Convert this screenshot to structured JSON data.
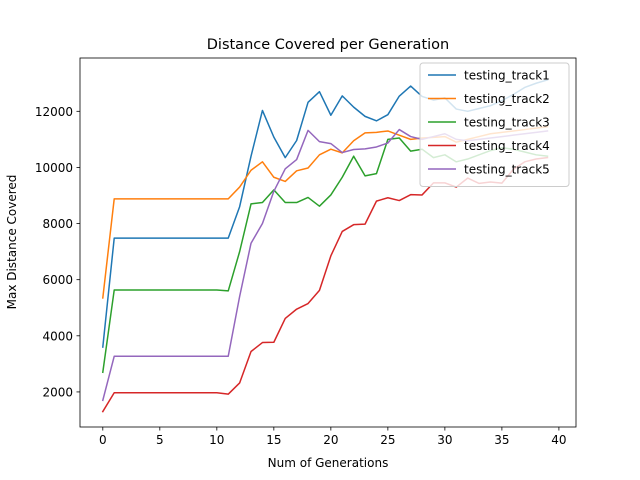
{
  "chart_data": {
    "type": "line",
    "title": "Distance Covered per Generation",
    "xlabel": "Num of Generations",
    "ylabel": "Max Distance Covered",
    "xlim": [
      -2,
      41.5
    ],
    "ylim": [
      750,
      13900
    ],
    "xticks": [
      0,
      5,
      10,
      15,
      20,
      25,
      30,
      35,
      40
    ],
    "yticks": [
      2000,
      4000,
      6000,
      8000,
      10000,
      12000
    ],
    "grid": false,
    "legend_position": "top-right",
    "x": [
      0,
      1,
      2,
      3,
      4,
      5,
      6,
      7,
      8,
      9,
      10,
      11,
      12,
      13,
      14,
      15,
      16,
      17,
      18,
      19,
      20,
      21,
      22,
      23,
      24,
      25,
      26,
      27,
      28,
      29,
      30,
      31,
      32,
      33,
      34,
      35,
      36,
      37,
      38,
      39
    ],
    "series": [
      {
        "name": "testing_track1",
        "color": "#1f77b4",
        "values": [
          3600,
          7480,
          7480,
          7480,
          7480,
          7480,
          7480,
          7480,
          7480,
          7480,
          7480,
          7480,
          8600,
          10400,
          12030,
          11080,
          10350,
          10960,
          12320,
          12700,
          11860,
          12550,
          12150,
          11820,
          11660,
          11880,
          12540,
          12900,
          12530,
          12400,
          12480,
          12080,
          12000,
          12100,
          12200,
          12380,
          12600,
          12850,
          13000,
          13120
        ]
      },
      {
        "name": "testing_track2",
        "color": "#ff7f0e",
        "values": [
          5350,
          8880,
          8880,
          8880,
          8880,
          8880,
          8880,
          8880,
          8880,
          8880,
          8880,
          8880,
          9300,
          9900,
          10200,
          9650,
          9500,
          9880,
          9980,
          10450,
          10650,
          10520,
          10950,
          11230,
          11250,
          11300,
          11150,
          11000,
          11050,
          11070,
          11100,
          10900,
          11000,
          11100,
          11200,
          11250,
          11300,
          11350,
          11400,
          11450
        ]
      },
      {
        "name": "testing_track3",
        "color": "#2ca02c",
        "values": [
          2700,
          5630,
          5630,
          5630,
          5630,
          5630,
          5630,
          5630,
          5630,
          5630,
          5630,
          5600,
          7000,
          8700,
          8750,
          9200,
          8750,
          8750,
          8930,
          8620,
          9020,
          9650,
          10400,
          9700,
          9780,
          11000,
          11050,
          10580,
          10650,
          10350,
          10450,
          10200,
          10300,
          10450,
          10600,
          10700,
          10650,
          10550,
          10450,
          10400
        ]
      },
      {
        "name": "testing_track4",
        "color": "#d62728",
        "values": [
          1300,
          1970,
          1970,
          1970,
          1970,
          1970,
          1970,
          1970,
          1970,
          1970,
          1970,
          1920,
          2320,
          3440,
          3760,
          3770,
          4620,
          4950,
          5150,
          5620,
          6850,
          7720,
          7960,
          7980,
          8800,
          8920,
          8820,
          9030,
          9020,
          9450,
          9450,
          9300,
          9620,
          9430,
          9480,
          9440,
          9930,
          10200,
          10300,
          10350
        ]
      },
      {
        "name": "testing_track5",
        "color": "#9467bd",
        "values": [
          1700,
          3270,
          3270,
          3270,
          3270,
          3270,
          3270,
          3270,
          3270,
          3270,
          3270,
          3270,
          5400,
          7300,
          8000,
          9150,
          9950,
          10280,
          11320,
          10920,
          10850,
          10530,
          10640,
          10660,
          10730,
          10870,
          11350,
          11100,
          11000,
          11100,
          11200,
          11000,
          10950,
          11000,
          11050,
          11100,
          11150,
          11200,
          11250,
          11300
        ]
      }
    ]
  }
}
